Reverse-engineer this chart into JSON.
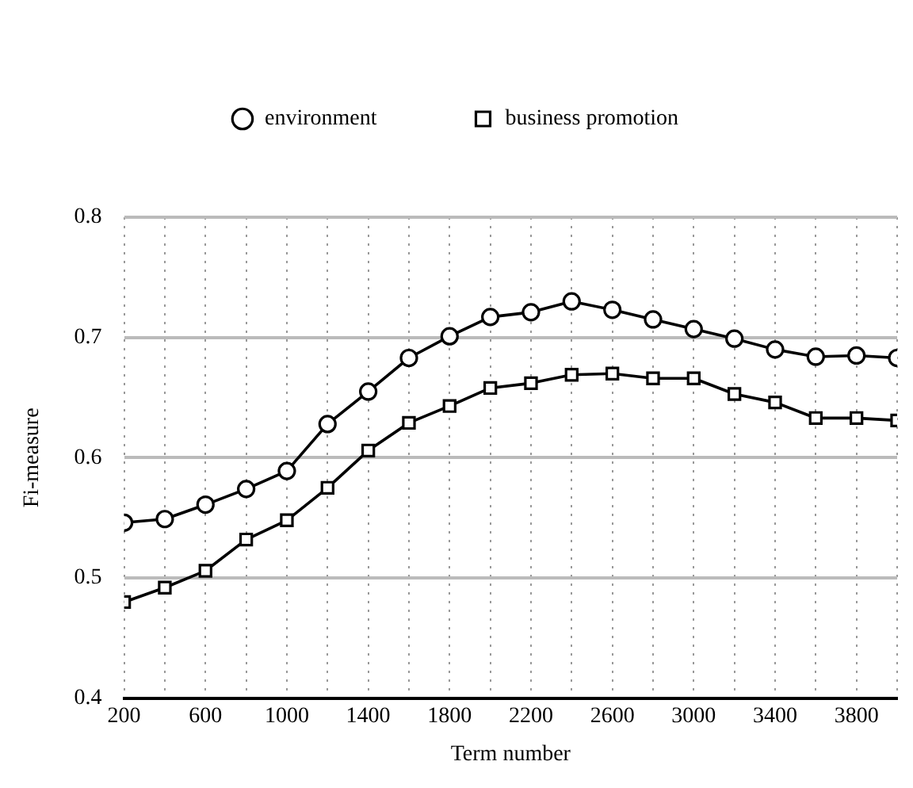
{
  "chart_data": {
    "type": "line",
    "xlabel": "Term number",
    "ylabel": "Fi-measure",
    "x": [
      200,
      400,
      600,
      800,
      1000,
      1200,
      1400,
      1600,
      1800,
      2000,
      2200,
      2400,
      2600,
      2800,
      3000,
      3200,
      3400,
      3600,
      3800,
      4000
    ],
    "series": [
      {
        "name": "environment",
        "color": "#000000",
        "marker": "circle",
        "values": [
          0.546,
          0.549,
          0.561,
          0.574,
          0.589,
          0.628,
          0.655,
          0.683,
          0.701,
          0.717,
          0.721,
          0.73,
          0.723,
          0.715,
          0.707,
          0.699,
          0.69,
          0.684,
          0.685,
          0.683
        ]
      },
      {
        "name": "business promotion",
        "color": "#000000",
        "marker": "square",
        "values": [
          0.48,
          0.492,
          0.506,
          0.532,
          0.548,
          0.575,
          0.606,
          0.629,
          0.643,
          0.658,
          0.662,
          0.669,
          0.67,
          0.666,
          0.666,
          0.653,
          0.646,
          0.633,
          0.633,
          0.631
        ]
      }
    ],
    "xlim": [
      200,
      4000
    ],
    "xticks": [
      200,
      {
        "value": 400,
        "label": null
      },
      600,
      {
        "value": 800,
        "label": null
      },
      1000,
      {
        "value": 1200,
        "label": null
      },
      1400,
      {
        "value": 1600,
        "label": null
      },
      1800,
      {
        "value": 2000,
        "label": null
      },
      2200,
      {
        "value": 2400,
        "label": null
      },
      2600,
      {
        "value": 2800,
        "label": null
      },
      3000,
      {
        "value": 3200,
        "label": null
      },
      3400,
      {
        "value": 3600,
        "label": null
      },
      3800,
      {
        "value": 4000,
        "label": null
      }
    ],
    "ylim": [
      0.4,
      0.8
    ],
    "yticks": [
      0.4,
      0.5,
      0.6,
      0.7,
      0.8
    ],
    "grid": true,
    "legend": "top",
    "line_style": "solid"
  }
}
